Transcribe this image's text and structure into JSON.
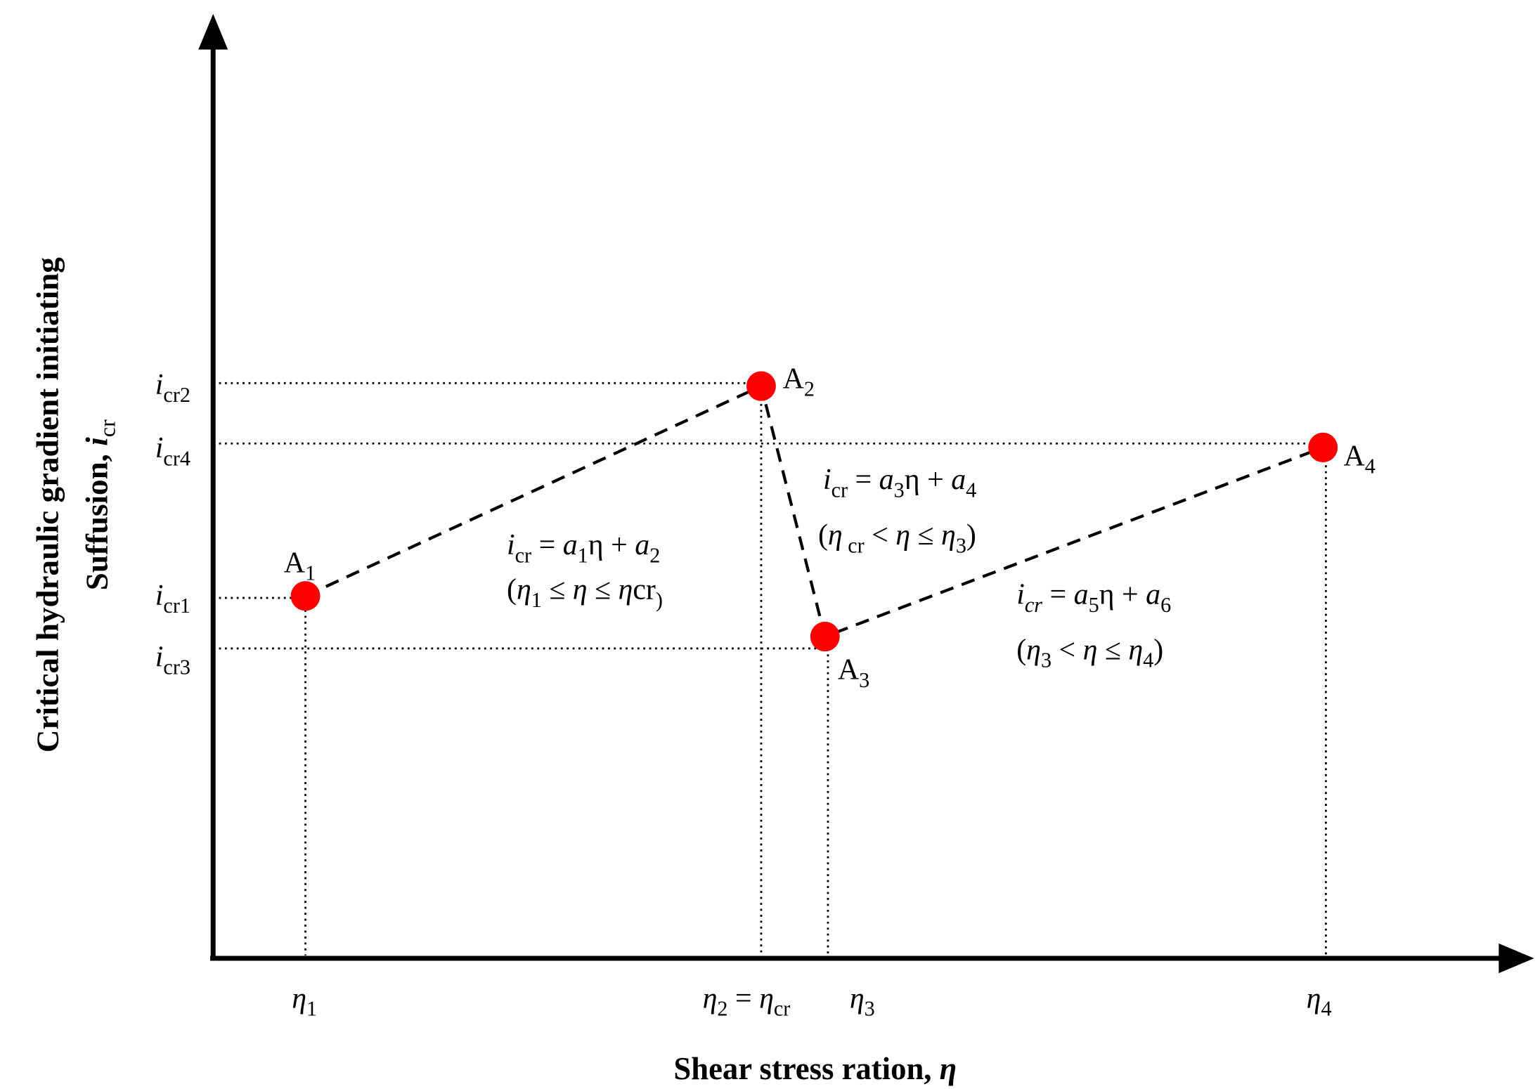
{
  "y_axis_label": [
    "Critical hydraulic gradient initiating",
    "Suffusion, ",
    "i",
    "cr"
  ],
  "x_axis_label": [
    "Shear stress ration, ",
    "η"
  ],
  "points": [
    [
      "A",
      "1"
    ],
    [
      "A",
      "2"
    ],
    [
      "A",
      "3"
    ],
    [
      "A",
      "4"
    ]
  ],
  "y_ticks": [
    [
      "i",
      "cr2"
    ],
    [
      "i",
      "cr4"
    ],
    [
      "i",
      "cr1"
    ],
    [
      "i",
      "cr3"
    ]
  ],
  "x_ticks": [
    [
      "η",
      "1"
    ],
    [
      "η",
      "2",
      " = ",
      "η",
      "cr"
    ],
    [
      "η",
      "3"
    ],
    [
      "η",
      "4"
    ]
  ],
  "equations": [
    {
      "formula": [
        "i",
        "cr",
        " = ",
        "a",
        "1",
        "η + ",
        "a",
        "2"
      ],
      "range": [
        "(",
        "η",
        "1",
        " ≤ ",
        "η",
        " ≤ ",
        "η",
        "cr",
        ")"
      ]
    },
    {
      "formula": [
        "i",
        "cr",
        " = ",
        "a",
        "3",
        "η + ",
        "a",
        "4"
      ],
      "range": [
        "(",
        "η",
        " cr",
        " < ",
        "η",
        " ≤ ",
        "η",
        "3",
        ")"
      ]
    },
    {
      "formula": [
        "i",
        "cr",
        " = ",
        "a",
        "5",
        "η + ",
        "a",
        "6"
      ],
      "range": [
        "(",
        "η",
        "3",
        " < ",
        "η",
        " ≤ ",
        "η",
        "4",
        ")"
      ]
    }
  ]
}
